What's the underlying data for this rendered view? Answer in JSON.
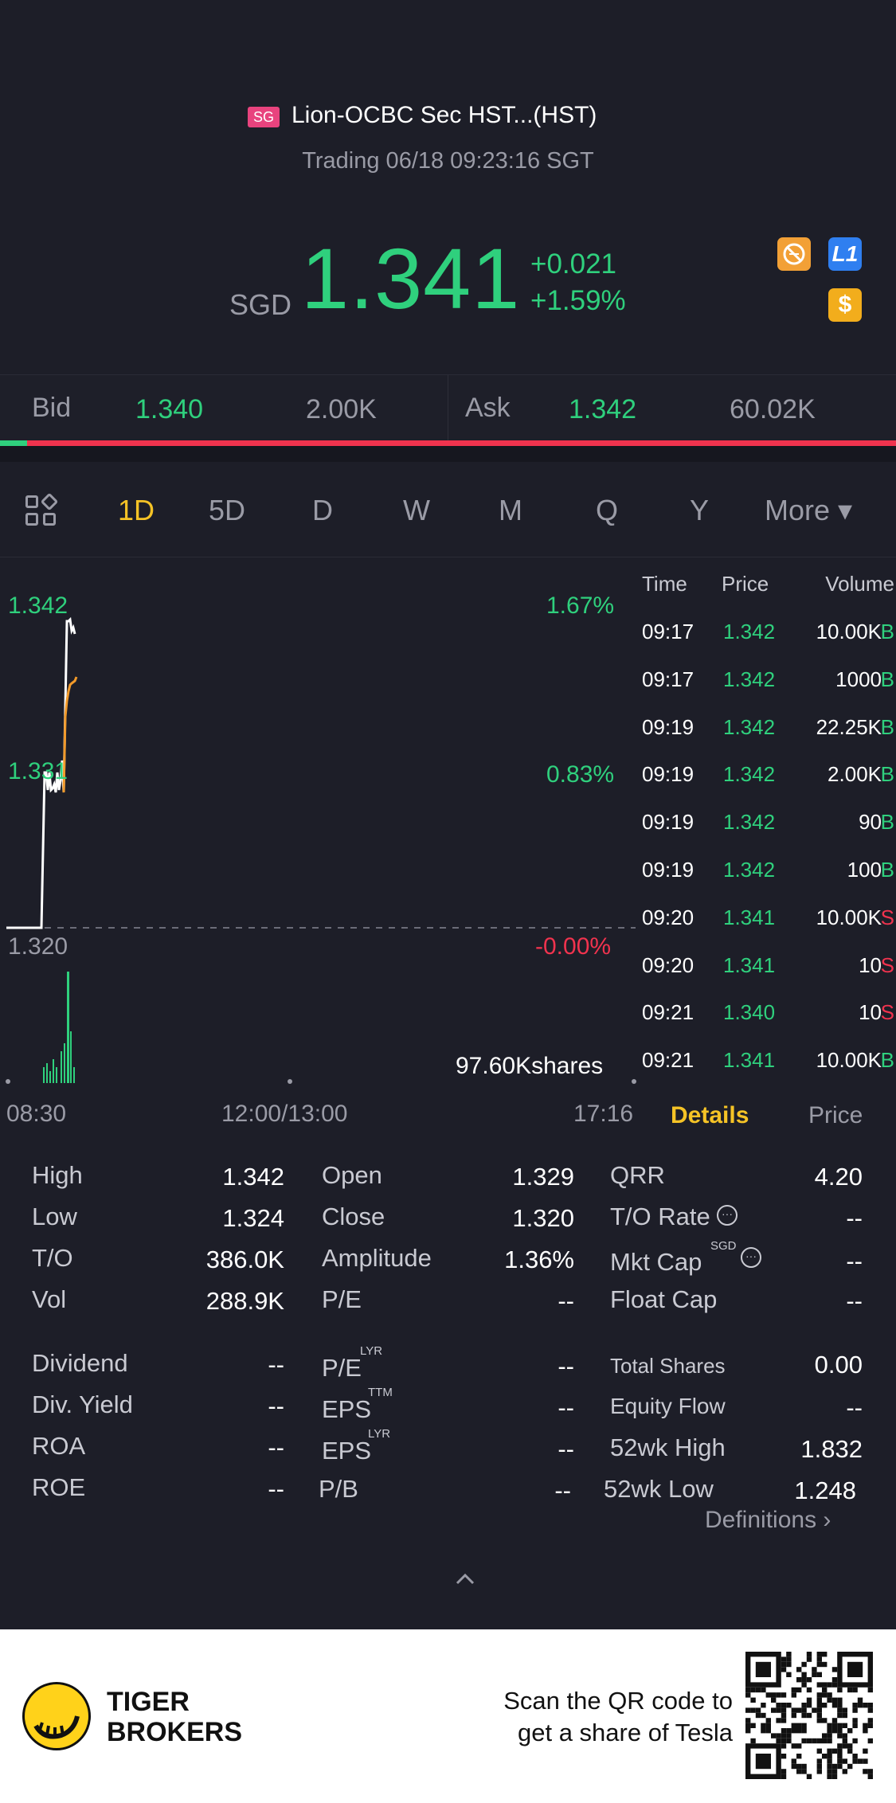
{
  "header": {
    "badge": "SG",
    "name": "Lion-OCBC Sec HST...(HST)",
    "status": "Trading 06/18 09:23:16 SGT",
    "currency": "SGD",
    "price": "1.341",
    "change": "+0.021",
    "change_pct": "+1.59%",
    "icons": [
      "no-short-icon",
      "level1-icon",
      "dollar-icon"
    ],
    "l1_label": "L1",
    "dollar_label": "$"
  },
  "bidask": {
    "bid_label": "Bid",
    "bid_price": "1.340",
    "bid_size": "2.00K",
    "ask_label": "Ask",
    "ask_price": "1.342",
    "ask_size": "60.02K"
  },
  "tabs": [
    "1D",
    "5D",
    "D",
    "W",
    "M",
    "Q",
    "Y"
  ],
  "more_tab": "More ▾",
  "chart": {
    "y_high": "1.342",
    "y_mid": "1.331",
    "y_low": "1.320",
    "pct_high": "1.67%",
    "pct_mid": "0.83%",
    "pct_low": "-0.00%",
    "volume_label": "97.60Kshares",
    "x_start": "08:30",
    "x_mid": "12:00/13:00",
    "x_end": "17:16"
  },
  "trades": {
    "headers": {
      "time": "Time",
      "price": "Price",
      "volume": "Volume"
    },
    "rows": [
      {
        "time": "09:17",
        "price": "1.342",
        "volume": "10.00K",
        "side": "B"
      },
      {
        "time": "09:17",
        "price": "1.342",
        "volume": "1000",
        "side": "B"
      },
      {
        "time": "09:19",
        "price": "1.342",
        "volume": "22.25K",
        "side": "B"
      },
      {
        "time": "09:19",
        "price": "1.342",
        "volume": "2.00K",
        "side": "B"
      },
      {
        "time": "09:19",
        "price": "1.342",
        "volume": "90",
        "side": "B"
      },
      {
        "time": "09:19",
        "price": "1.342",
        "volume": "100",
        "side": "B"
      },
      {
        "time": "09:20",
        "price": "1.341",
        "volume": "10.00K",
        "side": "S"
      },
      {
        "time": "09:20",
        "price": "1.341",
        "volume": "10",
        "side": "S"
      },
      {
        "time": "09:21",
        "price": "1.340",
        "volume": "10",
        "side": "S"
      },
      {
        "time": "09:21",
        "price": "1.341",
        "volume": "10.00K",
        "side": "B"
      }
    ]
  },
  "panel_tabs": {
    "details": "Details",
    "price": "Price"
  },
  "stats": {
    "high_l": "High",
    "high_v": "1.342",
    "low_l": "Low",
    "low_v": "1.324",
    "to_l": "T/O",
    "to_v": "386.0K",
    "vol_l": "Vol",
    "vol_v": "288.9K",
    "open_l": "Open",
    "open_v": "1.329",
    "close_l": "Close",
    "close_v": "1.320",
    "amp_l": "Amplitude",
    "amp_v": "1.36%",
    "pe_l": "P/E",
    "pe_v": "--",
    "qrr_l": "QRR",
    "qrr_v": "4.20",
    "torate_l": "T/O Rate",
    "torate_v": "--",
    "mktcap_l": "Mkt Cap",
    "mktcap_sup": "SGD",
    "mktcap_v": "--",
    "float_l": "Float Cap",
    "float_v": "--",
    "div_l": "Dividend",
    "div_v": "--",
    "divy_l": "Div. Yield",
    "divy_v": "--",
    "roa_l": "ROA",
    "roa_v": "--",
    "roe_l": "ROE",
    "roe_v": "--",
    "pelyr_l": "P/E",
    "pelyr_sup": "LYR",
    "pelyr_v": "--",
    "epsttm_l": "EPS",
    "epsttm_sup": "TTM",
    "epsttm_v": "--",
    "epslyr_l": "EPS",
    "epslyr_sup": "LYR",
    "epslyr_v": "--",
    "pb_l": "P/B",
    "pb_v": "--",
    "total_l": "Total Shares",
    "total_v": "0.00",
    "equity_l": "Equity Flow",
    "equity_v": "--",
    "wkhigh_l": "52wk High",
    "wkhigh_v": "1.832",
    "wklow_l": "52wk Low",
    "wklow_v": "1.248"
  },
  "definitions": "Definitions",
  "footer": {
    "brand_line1": "TIGER",
    "brand_line2": "BROKERS",
    "scan_line1": "Scan the QR code to",
    "scan_line2": "get a share of Tesla"
  },
  "colors": {
    "up": "#2fd07d",
    "down": "#f0334e",
    "accent": "#f5c326"
  }
}
